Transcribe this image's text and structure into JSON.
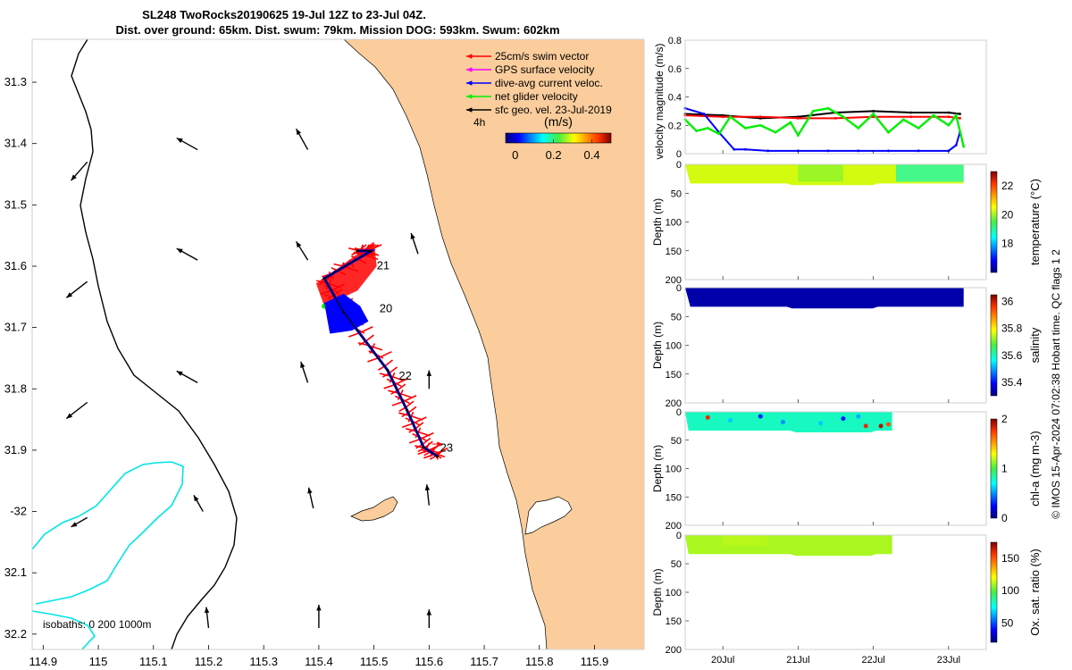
{
  "title": {
    "line1": "SL248 TwoRocks20190625 19-Jul 12Z to 23-Jul 04Z.",
    "line2": "Dist. over ground: 65km. Dist. swum: 79km. Mission DOG: 593km. Swum: 602km"
  },
  "map": {
    "xlim": [
      114.88,
      115.99
    ],
    "ylim": [
      -32.225,
      -31.23
    ],
    "xticks": [
      114.9,
      115,
      115.1,
      115.2,
      115.3,
      115.4,
      115.5,
      115.6,
      115.7,
      115.8,
      115.9
    ],
    "xtick_labels": [
      "114.9",
      "115",
      "115.1",
      "115.2",
      "115.3",
      "115.4",
      "115.5",
      "115.6",
      "115.7",
      "115.8",
      "115.9"
    ],
    "yticks": [
      -31.3,
      -31.4,
      -31.5,
      -31.6,
      -31.7,
      -31.8,
      -31.9,
      -32.0,
      -32.1,
      -32.2
    ],
    "ytick_labels": [
      "31.3",
      "31.4",
      "31.5",
      "31.6",
      "31.7",
      "31.8",
      "31.9",
      "-32",
      "32.1",
      "32.2"
    ],
    "legend": [
      {
        "label": "25cm/s swim vector",
        "color": "#ff0000"
      },
      {
        "label": "GPS surface velocity",
        "color": "#ff00ff"
      },
      {
        "label": "dive-avg current veloc.",
        "color": "#0000ff"
      },
      {
        "label": "net glider velocity",
        "color": "#00ee00"
      },
      {
        "label": "sfc geo. vel. 23-Jul-2019",
        "color": "#000000"
      }
    ],
    "time_marker": "4h",
    "colorbar": {
      "label": "(m/s)",
      "ticks": [
        "0",
        "0.2",
        "0.4"
      ],
      "range": [
        -0.05,
        0.5
      ]
    },
    "isobath_label": "isobaths: 0   200  1000m",
    "track": [
      [
        115.47,
        -31.575
      ],
      [
        115.495,
        -31.575
      ],
      [
        115.41,
        -31.62
      ],
      [
        115.445,
        -31.675
      ],
      [
        115.525,
        -31.77
      ],
      [
        115.56,
        -31.835
      ],
      [
        115.59,
        -31.895
      ],
      [
        115.615,
        -31.91
      ]
    ],
    "day_labels": [
      {
        "text": "21",
        "lon": 115.505,
        "lat": -31.605
      },
      {
        "text": "20",
        "lon": 115.51,
        "lat": -31.675
      },
      {
        "text": "22",
        "lon": 115.545,
        "lat": -31.785
      },
      {
        "text": "23",
        "lon": 115.62,
        "lat": -31.902
      }
    ],
    "geo_arrows": [
      {
        "lon": 114.98,
        "lat": -31.43,
        "u": -0.07,
        "v": -0.08
      },
      {
        "lon": 115.18,
        "lat": -31.41,
        "u": -0.09,
        "v": 0.05
      },
      {
        "lon": 115.38,
        "lat": -31.41,
        "u": -0.05,
        "v": 0.09
      },
      {
        "lon": 114.98,
        "lat": -31.625,
        "u": -0.09,
        "v": -0.07
      },
      {
        "lon": 115.18,
        "lat": -31.59,
        "u": -0.09,
        "v": 0.05
      },
      {
        "lon": 115.38,
        "lat": -31.59,
        "u": -0.05,
        "v": 0.08
      },
      {
        "lon": 115.58,
        "lat": -31.58,
        "u": -0.03,
        "v": 0.09
      },
      {
        "lon": 114.98,
        "lat": -31.822,
        "u": -0.09,
        "v": -0.07
      },
      {
        "lon": 115.18,
        "lat": -31.79,
        "u": -0.09,
        "v": 0.05
      },
      {
        "lon": 115.38,
        "lat": -31.79,
        "u": -0.03,
        "v": 0.09
      },
      {
        "lon": 115.6,
        "lat": -31.8,
        "u": 0.0,
        "v": 0.08
      },
      {
        "lon": 114.98,
        "lat": -32.01,
        "u": -0.07,
        "v": -0.04
      },
      {
        "lon": 115.19,
        "lat": -32.0,
        "u": -0.04,
        "v": 0.07
      },
      {
        "lon": 115.39,
        "lat": -31.995,
        "u": -0.02,
        "v": 0.09
      },
      {
        "lon": 115.6,
        "lat": -31.99,
        "u": -0.01,
        "v": 0.09
      },
      {
        "lon": 115.2,
        "lat": -32.19,
        "u": -0.01,
        "v": 0.09
      },
      {
        "lon": 115.4,
        "lat": -32.19,
        "u": 0.0,
        "v": 0.1
      },
      {
        "lon": 115.6,
        "lat": -32.19,
        "u": 0.0,
        "v": 0.08
      }
    ]
  },
  "chart_data": [
    {
      "type": "line",
      "ylabel": "velocity magnitude (m/s)",
      "ylim": [
        0,
        0.8
      ],
      "yticks": [
        "0",
        "0.2",
        "0.4",
        "0.6",
        "0.8"
      ],
      "xlim": [
        19.5,
        23.5
      ],
      "series": [
        {
          "name": "sfc geo. vel.",
          "color": "#000000",
          "x": [
            19.5,
            20,
            20.5,
            21,
            21.5,
            22,
            22.5,
            23,
            23.15
          ],
          "y": [
            0.28,
            0.27,
            0.25,
            0.26,
            0.29,
            0.3,
            0.29,
            0.29,
            0.28
          ]
        },
        {
          "name": "swim vector",
          "color": "#ff0000",
          "x": [
            19.5,
            20,
            20.5,
            21,
            21.5,
            22,
            22.5,
            23,
            23.15
          ],
          "y": [
            0.27,
            0.26,
            0.26,
            0.25,
            0.25,
            0.26,
            0.26,
            0.26,
            0.25
          ]
        },
        {
          "name": "dive-avg current veloc.",
          "color": "#0000ff",
          "x": [
            19.5,
            19.75,
            19.95,
            20.15,
            20.3,
            20.6,
            21,
            21.4,
            21.8,
            22.2,
            22.6,
            23.0,
            23.1,
            23.15
          ],
          "y": [
            0.32,
            0.28,
            0.15,
            0.03,
            0.03,
            0.02,
            0.02,
            0.02,
            0.02,
            0.02,
            0.02,
            0.02,
            0.06,
            0.15
          ]
        },
        {
          "name": "net glider velocity",
          "color": "#00ee00",
          "x": [
            19.5,
            19.65,
            19.8,
            19.95,
            20.1,
            20.3,
            20.5,
            20.7,
            20.9,
            21.0,
            21.2,
            21.4,
            21.6,
            21.8,
            22.0,
            22.2,
            22.4,
            22.6,
            22.8,
            23.0,
            23.1,
            23.2
          ],
          "y": [
            0.24,
            0.16,
            0.18,
            0.14,
            0.26,
            0.18,
            0.2,
            0.15,
            0.22,
            0.13,
            0.3,
            0.32,
            0.26,
            0.18,
            0.28,
            0.15,
            0.24,
            0.18,
            0.27,
            0.2,
            0.27,
            0.05
          ]
        }
      ],
      "xticks": [
        "20Jul",
        "21Jul",
        "22Jul",
        "23Jul"
      ]
    },
    {
      "type": "heatmap",
      "variable": "temperature",
      "colorbar_label": "temperature (°C)",
      "clim": [
        16,
        23
      ],
      "cticks": [
        "18",
        "20",
        "22"
      ],
      "ylabel": "Depth (m)",
      "ylim": [
        0,
        200
      ],
      "yticks": [
        "0",
        "50",
        "100",
        "150",
        "200"
      ],
      "x_end": 23.2,
      "dominant_value": 20.3,
      "xticks": [
        "20Jul",
        "21Jul",
        "22Jul",
        "23Jul"
      ]
    },
    {
      "type": "heatmap",
      "variable": "salinity",
      "colorbar_label": "salinity",
      "clim": [
        35.3,
        36.05
      ],
      "cticks": [
        "35.4",
        "35.6",
        "35.8",
        "36"
      ],
      "ylabel": "Depth (m)",
      "ylim": [
        0,
        200
      ],
      "yticks": [
        "0",
        "50",
        "100",
        "150",
        "200"
      ],
      "x_end": 23.2,
      "dominant_value": 35.33,
      "xticks": [
        "20Jul",
        "21Jul",
        "22Jul",
        "23Jul"
      ]
    },
    {
      "type": "heatmap",
      "variable": "chl-a",
      "colorbar_label": "chl-a (mg m-3)",
      "clim": [
        0,
        2
      ],
      "cticks": [
        "0",
        "1",
        "2"
      ],
      "ylabel": "Depth (m)",
      "ylim": [
        0,
        200
      ],
      "yticks": [
        "0",
        "50",
        "100",
        "150",
        "200"
      ],
      "x_end": 22.25,
      "dominant_value": 0.8,
      "xticks": [
        "20Jul",
        "21Jul",
        "22Jul",
        "23Jul"
      ]
    },
    {
      "type": "heatmap",
      "variable": "oxygen",
      "colorbar_label": "Ox. sat. ratio (%)",
      "clim": [
        20,
        175
      ],
      "cticks": [
        "50",
        "100",
        "150"
      ],
      "ylabel": "Depth (m)",
      "ylim": [
        0,
        200
      ],
      "yticks": [
        "0",
        "50",
        "100",
        "150",
        "200"
      ],
      "x_end": 22.25,
      "dominant_value": 110,
      "xticks": [
        "20Jul",
        "21Jul",
        "22Jul",
        "23Jul"
      ]
    }
  ],
  "side_note": "© IMOS 15-Apr-2024 07:02:38 Hobart time. QC flags 1  2",
  "colors": {
    "land": "#fbcd9c",
    "isobath200": "#000000",
    "isobath1000": "#00e5e5"
  }
}
